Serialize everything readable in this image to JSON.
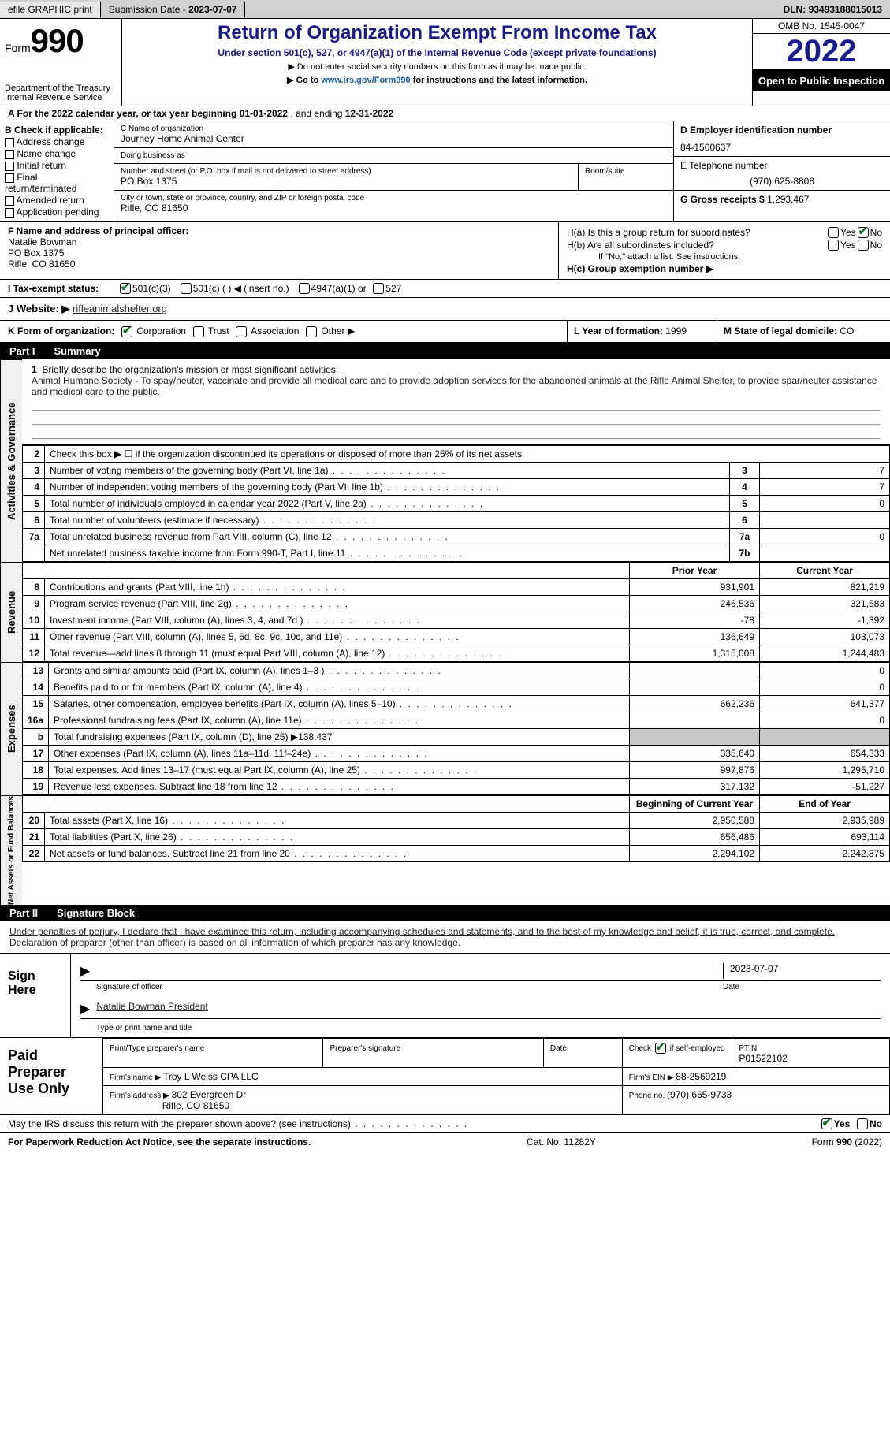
{
  "topbar": {
    "efile": "efile GRAPHIC print",
    "submission_label": "Submission Date - ",
    "submission_date": "2023-07-07",
    "dln_label": "DLN: ",
    "dln": "93493188015013"
  },
  "header": {
    "form_word": "Form",
    "form_num": "990",
    "dept": "Department of the Treasury Internal Revenue Service",
    "title": "Return of Organization Exempt From Income Tax",
    "sub": "Under section 501(c), 527, or 4947(a)(1) of the Internal Revenue Code (except private foundations)",
    "note1": "▶ Do not enter social security numbers on this form as it may be made public.",
    "note2_pre": "▶ Go to ",
    "note2_link": "www.irs.gov/Form990",
    "note2_post": " for instructions and the latest information.",
    "omb": "OMB No. 1545-0047",
    "year": "2022",
    "inspect": "Open to Public Inspection"
  },
  "lineA": {
    "text_pre": "A For the 2022 calendar year, or tax year beginning ",
    "begin": "01-01-2022",
    "mid": " , and ending ",
    "end": "12-31-2022"
  },
  "B": {
    "title": "B Check if applicable:",
    "opts": [
      "Address change",
      "Name change",
      "Initial return",
      "Final return/terminated",
      "Amended return",
      "Application pending"
    ]
  },
  "C": {
    "name_label": "C Name of organization",
    "name": "Journey Home Animal Center",
    "dba_label": "Doing business as",
    "dba": "",
    "street_label": "Number and street (or P.O. box if mail is not delivered to street address)",
    "street": "PO Box 1375",
    "room_label": "Room/suite",
    "room": "",
    "city_label": "City or town, state or province, country, and ZIP or foreign postal code",
    "city": "Rifle, CO  81650"
  },
  "D": {
    "label": "D Employer identification number",
    "value": "84-1500637"
  },
  "E": {
    "label": "E Telephone number",
    "value": "(970) 625-8808"
  },
  "G": {
    "label": "G Gross receipts $ ",
    "value": "1,293,467"
  },
  "F": {
    "label": "F Name and address of principal officer:",
    "name": "Natalie Bowman",
    "street": "PO Box 1375",
    "city": "Rifle, CO  81650"
  },
  "H": {
    "a_label": "H(a)  Is this a group return for subordinates?",
    "b_label": "H(b)  Are all subordinates included?",
    "b_note": "If \"No,\" attach a list. See instructions.",
    "c_label": "H(c)  Group exemption number ▶",
    "yes": "Yes",
    "no": "No"
  },
  "I": {
    "label": "I   Tax-exempt status:",
    "o1": "501(c)(3)",
    "o2": "501(c) (  ) ◀ (insert no.)",
    "o3": "4947(a)(1) or",
    "o4": "527"
  },
  "J": {
    "label": "J   Website: ▶ ",
    "value": "rifleanimalshelter.org"
  },
  "K": {
    "label": "K Form of organization:",
    "o1": "Corporation",
    "o2": "Trust",
    "o3": "Association",
    "o4": "Other ▶"
  },
  "L": {
    "label": "L Year of formation: ",
    "value": "1999"
  },
  "M": {
    "label": "M State of legal domicile: ",
    "value": "CO"
  },
  "part1": {
    "tag": "Part I",
    "name": "Summary"
  },
  "part2": {
    "tag": "Part II",
    "name": "Signature Block"
  },
  "vtabs": {
    "ag": "Activities & Governance",
    "rev": "Revenue",
    "exp": "Expenses",
    "na": "Net Assets or Fund Balances"
  },
  "s1": {
    "q1_pre": "Briefly describe the organization's mission or most significant activities:",
    "q1_text": "Animal Humane Society - To spay/neuter, vaccinate and provide all medical care and to provide adoption services for the abandoned animals at the Rifle Animal Shelter, to provide spar/neuter assistance and medical care to the public.",
    "q2": "Check this box ▶ ☐ if the organization discontinued its operations or disposed of more than 25% of its net assets.",
    "r": [
      {
        "n": "3",
        "t": "Number of voting members of the governing body (Part VI, line 1a)",
        "b": "3",
        "v": "7"
      },
      {
        "n": "4",
        "t": "Number of independent voting members of the governing body (Part VI, line 1b)",
        "b": "4",
        "v": "7"
      },
      {
        "n": "5",
        "t": "Total number of individuals employed in calendar year 2022 (Part V, line 2a)",
        "b": "5",
        "v": "0"
      },
      {
        "n": "6",
        "t": "Total number of volunteers (estimate if necessary)",
        "b": "6",
        "v": ""
      },
      {
        "n": "7a",
        "t": "Total unrelated business revenue from Part VIII, column (C), line 12",
        "b": "7a",
        "v": "0"
      },
      {
        "n": "",
        "t": "Net unrelated business taxable income from Form 990-T, Part I, line 11",
        "b": "7b",
        "v": ""
      }
    ]
  },
  "pycy": {
    "py": "Prior Year",
    "cy": "Current Year"
  },
  "rev_rows": [
    {
      "n": "8",
      "t": "Contributions and grants (Part VIII, line 1h)",
      "py": "931,901",
      "cy": "821,219"
    },
    {
      "n": "9",
      "t": "Program service revenue (Part VIII, line 2g)",
      "py": "246,536",
      "cy": "321,583"
    },
    {
      "n": "10",
      "t": "Investment income (Part VIII, column (A), lines 3, 4, and 7d )",
      "py": "-78",
      "cy": "-1,392"
    },
    {
      "n": "11",
      "t": "Other revenue (Part VIII, column (A), lines 5, 6d, 8c, 9c, 10c, and 11e)",
      "py": "136,649",
      "cy": "103,073"
    },
    {
      "n": "12",
      "t": "Total revenue—add lines 8 through 11 (must equal Part VIII, column (A), line 12)",
      "py": "1,315,008",
      "cy": "1,244,483"
    }
  ],
  "exp_rows": [
    {
      "n": "13",
      "t": "Grants and similar amounts paid (Part IX, column (A), lines 1–3 )",
      "py": "",
      "cy": "0"
    },
    {
      "n": "14",
      "t": "Benefits paid to or for members (Part IX, column (A), line 4)",
      "py": "",
      "cy": "0"
    },
    {
      "n": "15",
      "t": "Salaries, other compensation, employee benefits (Part IX, column (A), lines 5–10)",
      "py": "662,236",
      "cy": "641,377"
    },
    {
      "n": "16a",
      "t": "Professional fundraising fees (Part IX, column (A), line 11e)",
      "py": "",
      "cy": "0"
    },
    {
      "n": "b",
      "t": "Total fundraising expenses (Part IX, column (D), line 25) ▶138,437",
      "py": "grey",
      "cy": "grey"
    },
    {
      "n": "17",
      "t": "Other expenses (Part IX, column (A), lines 11a–11d, 11f–24e)",
      "py": "335,640",
      "cy": "654,333"
    },
    {
      "n": "18",
      "t": "Total expenses. Add lines 13–17 (must equal Part IX, column (A), line 25)",
      "py": "997,876",
      "cy": "1,295,710"
    },
    {
      "n": "19",
      "t": "Revenue less expenses. Subtract line 18 from line 12",
      "py": "317,132",
      "cy": "-51,227"
    }
  ],
  "na_hdr": {
    "b": "Beginning of Current Year",
    "e": "End of Year"
  },
  "na_rows": [
    {
      "n": "20",
      "t": "Total assets (Part X, line 16)",
      "py": "2,950,588",
      "cy": "2,935,989"
    },
    {
      "n": "21",
      "t": "Total liabilities (Part X, line 26)",
      "py": "656,486",
      "cy": "693,114"
    },
    {
      "n": "22",
      "t": "Net assets or fund balances. Subtract line 21 from line 20",
      "py": "2,294,102",
      "cy": "2,242,875"
    }
  ],
  "sig": {
    "intro": "Under penalties of perjury, I declare that I have examined this return, including accompanying schedules and statements, and to the best of my knowledge and belief, it is true, correct, and complete. Declaration of preparer (other than officer) is based on all information of which preparer has any knowledge.",
    "sign_here": "Sign Here",
    "sig_label": "Signature of officer",
    "date_label": "Date",
    "date": "2023-07-07",
    "name": "Natalie Bowman  President",
    "name_label": "Type or print name and title"
  },
  "prep": {
    "title": "Paid Preparer Use Only",
    "c1": "Print/Type preparer's name",
    "c2": "Preparer's signature",
    "c3": "Date",
    "c4_pre": "Check ",
    "c4_post": " if self-employed",
    "c5_label": "PTIN",
    "c5": "P01522102",
    "firm_label": "Firm's name   ▶ ",
    "firm": "Troy L Weiss CPA LLC",
    "ein_label": "Firm's EIN ▶ ",
    "ein": "88-2569219",
    "addr_label": "Firm's address ▶ ",
    "addr1": "302 Evergreen Dr",
    "addr2": "Rifle, CO  81650",
    "phone_label": "Phone no. ",
    "phone": "(970) 665-9733"
  },
  "irsq": {
    "q": "May the IRS discuss this return with the preparer shown above? (see instructions)",
    "yes": "Yes",
    "no": "No"
  },
  "footer": {
    "l": "For Paperwork Reduction Act Notice, see the separate instructions.",
    "c": "Cat. No. 11282Y",
    "r": "Form 990 (2022)"
  },
  "colors": {
    "title": "#1a1a8a",
    "link": "#1a5aaa",
    "check": "#0a6b2a",
    "grey": "#c8c8c8",
    "topbar": "#d0d0d0"
  }
}
